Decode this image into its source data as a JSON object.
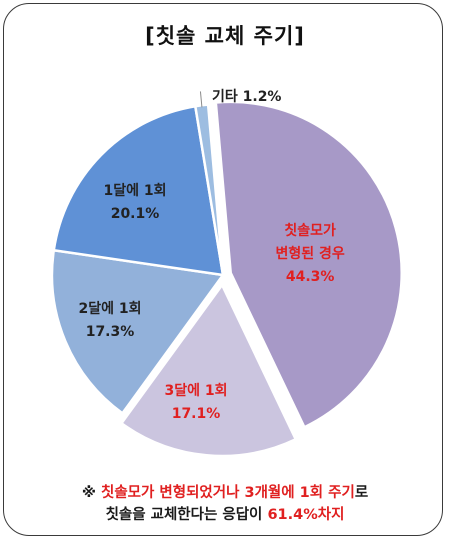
{
  "chart_data": {
    "type": "pie",
    "title": "[칫솔 교체 주기]",
    "slices": [
      {
        "name_lines": [
          "칫솔모가",
          "변형된 경우"
        ],
        "value": 44.3,
        "value_label": "44.3%",
        "color": "#a799c7",
        "highlight": true
      },
      {
        "name_lines": [
          "3달에 1회"
        ],
        "value": 17.1,
        "value_label": "17.1%",
        "color": "#cbc5df",
        "highlight": true
      },
      {
        "name_lines": [
          "2달에 1회"
        ],
        "value": 17.3,
        "value_label": "17.3%",
        "color": "#92b1da",
        "highlight": false
      },
      {
        "name_lines": [
          "1달에 1회"
        ],
        "value": 20.1,
        "value_label": "20.1%",
        "color": "#5f91d6",
        "highlight": false
      },
      {
        "name_lines": [
          "기타 1.2%"
        ],
        "value": 1.2,
        "value_label": "",
        "color": "#9dbde1",
        "highlight": false
      }
    ]
  },
  "footnote": {
    "line1": [
      {
        "text": "※ ",
        "red": false
      },
      {
        "text": "칫솔모가 변형되었거나 3개월에 1회 주기",
        "red": true
      },
      {
        "text": "로",
        "red": false
      }
    ],
    "line2": [
      {
        "text": "칫솔을 교체한다는 응답이 ",
        "red": false
      },
      {
        "text": "61.4%차지",
        "red": true
      }
    ]
  }
}
